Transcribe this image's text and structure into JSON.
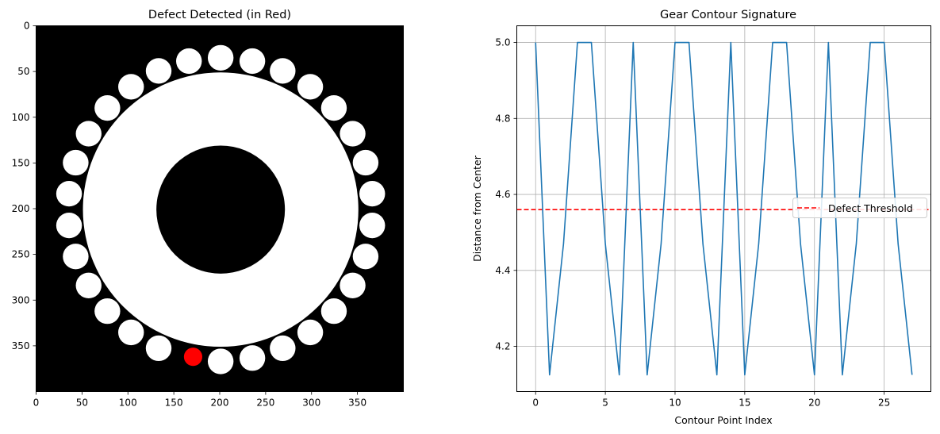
{
  "chart_data": [
    {
      "type": "image",
      "title": "Defect Detected (in Red)",
      "x_ticks": [
        0,
        50,
        100,
        150,
        200,
        250,
        300,
        350
      ],
      "y_ticks": [
        0,
        50,
        100,
        150,
        200,
        250,
        300,
        350
      ],
      "xlim": [
        0,
        400
      ],
      "ylim": [
        400,
        0
      ],
      "gear": {
        "center": [
          201,
          201
        ],
        "body_radius": 150,
        "bore_radius": 70,
        "tooth_count": 30,
        "tooth_pitch_radius": 166,
        "tooth_radius": 14,
        "start_angle_deg": 90,
        "missing_tooth_index": 1
      },
      "defect_marker": {
        "x": 171,
        "y": 362,
        "radius": 10,
        "color": "#ff0000"
      },
      "colors": {
        "background": "#000000",
        "gear": "#ffffff",
        "defect": "#ff0000"
      }
    },
    {
      "type": "line",
      "title": "Gear Contour Signature",
      "xlabel": "Contour Point Index",
      "ylabel": "Distance from Center",
      "x": [
        0,
        1,
        2,
        3,
        4,
        5,
        6,
        7,
        8,
        9,
        10,
        11,
        12,
        13,
        14,
        15,
        16,
        17,
        18,
        19,
        20,
        21,
        22,
        23,
        24,
        25,
        26,
        27
      ],
      "series": [
        {
          "values": [
            5.0,
            4.125,
            4.47,
            5.0,
            5.0,
            4.47,
            4.125,
            5.0,
            4.125,
            4.47,
            5.0,
            5.0,
            4.47,
            4.125,
            5.0,
            4.125,
            4.47,
            5.0,
            5.0,
            4.47,
            4.125,
            5.0,
            4.125,
            4.47,
            5.0,
            5.0,
            4.47,
            4.125
          ],
          "color": "#1f77b4"
        }
      ],
      "threshold": {
        "label": "Defect Threshold",
        "value": 4.56,
        "color": "#ff0000",
        "style": "dashed"
      },
      "xlim": [
        -1.35,
        28.35
      ],
      "ylim": [
        4.081,
        5.044
      ],
      "x_ticks": [
        0,
        5,
        10,
        15,
        20,
        25
      ],
      "y_ticks": [
        4.2,
        4.4,
        4.6,
        4.8,
        5.0
      ],
      "y_tick_labels": [
        "4.2",
        "4.4",
        "4.6",
        "4.8",
        "5.0"
      ],
      "grid": true,
      "legend_position": "center-right"
    }
  ]
}
